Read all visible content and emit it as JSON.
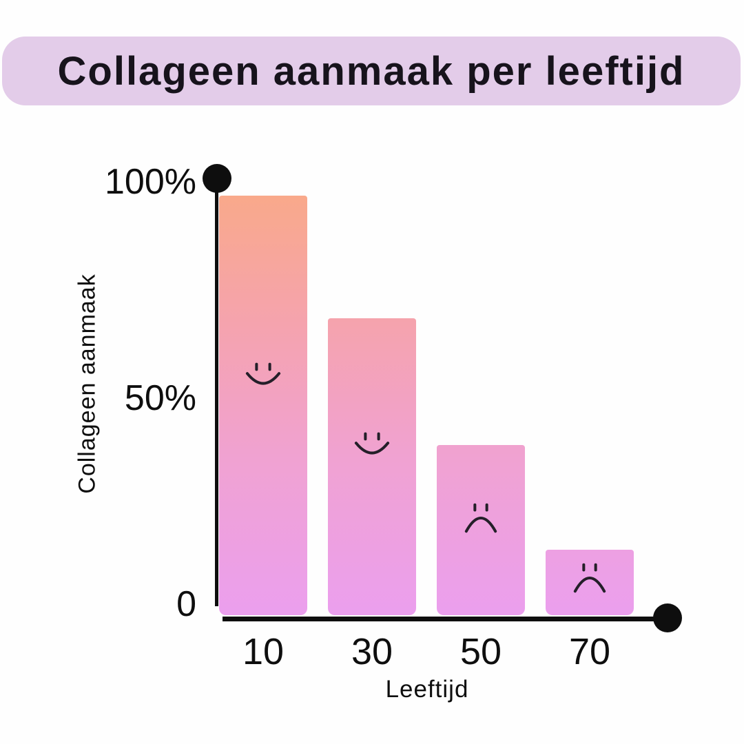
{
  "title_banner": {
    "label": "Collageen aanmaak per leeftijd",
    "background": "#e3cce9",
    "text_color": "#17131c"
  },
  "chart_data": {
    "type": "bar",
    "title": "Collageen aanmaak per leeftijd",
    "xlabel": "Leeftijd",
    "ylabel": "Collageen aanmaak",
    "categories": [
      "10",
      "30",
      "50",
      "70"
    ],
    "values": [
      96,
      68,
      39,
      15
    ],
    "unit": "%",
    "ylim": [
      0,
      100
    ],
    "ytick_labels": [
      "100%",
      "50%",
      "0"
    ],
    "ytick_values": [
      100,
      50,
      0
    ],
    "xtick_position": "below-bars",
    "grid": false,
    "legend": false,
    "bar_moods": [
      "smile-icon",
      "smile-icon",
      "frown-icon",
      "frown-icon"
    ],
    "axis_color": "#0e0e0e",
    "face_color": "#241f29",
    "bar_gradient": [
      "#f9a98a",
      "#f5a3ae",
      "#f0a2d2",
      "#eb9fee"
    ],
    "axis_end_markers": [
      "dot-top-of-y-axis",
      "dot-right-of-x-axis"
    ]
  }
}
